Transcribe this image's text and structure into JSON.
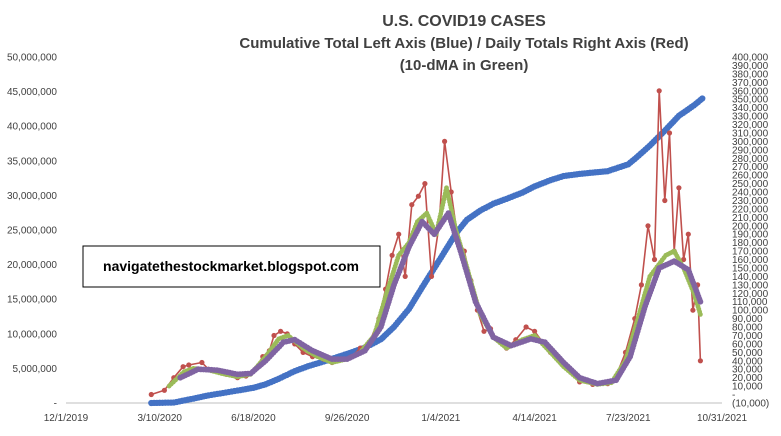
{
  "chart_data": {
    "type": "line",
    "title": "U.S. COVID19 CASES",
    "subtitle_lines": [
      "Cumulative Total Left Axis (Blue) / Daily Totals Right Axis (Red)",
      "(10-dMA in Green)"
    ],
    "annotation": "navigatethestockmarket.blogspot.com",
    "x_axis": {
      "type": "date",
      "range": [
        "2019-12-01",
        "2021-10-31"
      ],
      "tick_labels": [
        "12/1/2019",
        "3/10/2020",
        "6/18/2020",
        "9/26/2020",
        "1/4/2021",
        "4/14/2021",
        "7/23/2021",
        "10/31/2021"
      ]
    },
    "y_left": {
      "range": [
        0,
        50000000
      ],
      "tick_labels": [
        "-",
        "5,000,000",
        "10,000,000",
        "15,000,000",
        "20,000,000",
        "25,000,000",
        "30,000,000",
        "35,000,000",
        "40,000,000",
        "45,000,000",
        "50,000,000"
      ]
    },
    "y_right": {
      "range": [
        -10000,
        400000
      ],
      "tick_labels": [
        "(10,000)",
        "-",
        "10,000",
        "20,000",
        "30,000",
        "40,000",
        "50,000",
        "60,000",
        "70,000",
        "80,000",
        "90,000",
        "100,000",
        "110,000",
        "120,000",
        "130,000",
        "140,000",
        "150,000",
        "160,000",
        "170,000",
        "180,000",
        "190,000",
        "200,000",
        "210,000",
        "220,000",
        "230,000",
        "240,000",
        "250,000",
        "260,000",
        "270,000",
        "280,000",
        "290,000",
        "300,000",
        "310,000",
        "320,000",
        "330,000",
        "340,000",
        "350,000",
        "360,000",
        "370,000",
        "380,000",
        "390,000",
        "400,000"
      ]
    },
    "grid": false,
    "colors": {
      "cumulative": "#4472C4",
      "daily": "#C0504D",
      "ma10": "#9BBB59",
      "ma_smooth": "#8064A2"
    },
    "series": [
      {
        "axis": "left",
        "role": "cumulative",
        "points": [
          [
            "2020-03-01",
            100
          ],
          [
            "2020-03-25",
            70000
          ],
          [
            "2020-04-15",
            640000
          ],
          [
            "2020-05-01",
            1100000
          ],
          [
            "2020-06-01",
            1800000
          ],
          [
            "2020-06-18",
            2200000
          ],
          [
            "2020-07-01",
            2700000
          ],
          [
            "2020-07-15",
            3500000
          ],
          [
            "2020-08-01",
            4600000
          ],
          [
            "2020-08-15",
            5300000
          ],
          [
            "2020-09-01",
            6000000
          ],
          [
            "2020-09-26",
            7100000
          ],
          [
            "2020-10-15",
            8000000
          ],
          [
            "2020-11-01",
            9200000
          ],
          [
            "2020-11-15",
            11000000
          ],
          [
            "2020-12-01",
            13600000
          ],
          [
            "2020-12-15",
            16700000
          ],
          [
            "2021-01-04",
            21000000
          ],
          [
            "2021-01-20",
            24500000
          ],
          [
            "2021-02-01",
            26500000
          ],
          [
            "2021-02-15",
            27800000
          ],
          [
            "2021-03-01",
            28800000
          ],
          [
            "2021-03-15",
            29500000
          ],
          [
            "2021-04-01",
            30400000
          ],
          [
            "2021-04-14",
            31300000
          ],
          [
            "2021-05-01",
            32200000
          ],
          [
            "2021-05-15",
            32800000
          ],
          [
            "2021-06-01",
            33100000
          ],
          [
            "2021-06-15",
            33300000
          ],
          [
            "2021-07-01",
            33500000
          ],
          [
            "2021-07-23",
            34500000
          ],
          [
            "2021-08-01",
            35500000
          ],
          [
            "2021-08-15",
            37200000
          ],
          [
            "2021-09-01",
            39500000
          ],
          [
            "2021-09-15",
            41500000
          ],
          [
            "2021-10-01",
            43000000
          ],
          [
            "2021-10-10",
            44000000
          ]
        ]
      },
      {
        "axis": "right",
        "role": "daily",
        "points": [
          [
            "2020-03-01",
            20
          ],
          [
            "2020-03-15",
            5000
          ],
          [
            "2020-03-25",
            20000
          ],
          [
            "2020-04-04",
            33000
          ],
          [
            "2020-04-10",
            35000
          ],
          [
            "2020-04-24",
            38000
          ],
          [
            "2020-05-01",
            30000
          ],
          [
            "2020-05-10",
            27000
          ],
          [
            "2020-05-20",
            24000
          ],
          [
            "2020-06-01",
            20000
          ],
          [
            "2020-06-10",
            22000
          ],
          [
            "2020-06-20",
            30000
          ],
          [
            "2020-06-28",
            45000
          ],
          [
            "2020-07-05",
            52000
          ],
          [
            "2020-07-10",
            70000
          ],
          [
            "2020-07-17",
            75000
          ],
          [
            "2020-07-24",
            72000
          ],
          [
            "2020-08-01",
            60000
          ],
          [
            "2020-08-10",
            50000
          ],
          [
            "2020-08-20",
            45000
          ],
          [
            "2020-09-01",
            42000
          ],
          [
            "2020-09-10",
            38000
          ],
          [
            "2020-09-20",
            42000
          ],
          [
            "2020-10-01",
            45000
          ],
          [
            "2020-10-10",
            55000
          ],
          [
            "2020-10-20",
            62000
          ],
          [
            "2020-10-30",
            90000
          ],
          [
            "2020-11-06",
            125000
          ],
          [
            "2020-11-13",
            165000
          ],
          [
            "2020-11-20",
            190000
          ],
          [
            "2020-11-27",
            140000
          ],
          [
            "2020-12-04",
            225000
          ],
          [
            "2020-12-11",
            235000
          ],
          [
            "2020-12-18",
            250000
          ],
          [
            "2020-12-25",
            140000
          ],
          [
            "2021-01-02",
            200000
          ],
          [
            "2021-01-08",
            300000
          ],
          [
            "2021-01-15",
            240000
          ],
          [
            "2021-01-22",
            185000
          ],
          [
            "2021-01-29",
            170000
          ],
          [
            "2021-02-05",
            135000
          ],
          [
            "2021-02-12",
            100000
          ],
          [
            "2021-02-19",
            75000
          ],
          [
            "2021-02-26",
            78000
          ],
          [
            "2021-03-05",
            65000
          ],
          [
            "2021-03-15",
            55000
          ],
          [
            "2021-03-25",
            65000
          ],
          [
            "2021-04-05",
            80000
          ],
          [
            "2021-04-14",
            75000
          ],
          [
            "2021-04-24",
            60000
          ],
          [
            "2021-05-01",
            50000
          ],
          [
            "2021-05-15",
            35000
          ],
          [
            "2021-06-01",
            15000
          ],
          [
            "2021-06-15",
            12000
          ],
          [
            "2021-07-01",
            13000
          ],
          [
            "2021-07-10",
            22000
          ],
          [
            "2021-07-20",
            50000
          ],
          [
            "2021-07-30",
            90000
          ],
          [
            "2021-08-06",
            130000
          ],
          [
            "2021-08-13",
            200000
          ],
          [
            "2021-08-20",
            160000
          ],
          [
            "2021-08-25",
            360000
          ],
          [
            "2021-08-31",
            230000
          ],
          [
            "2021-09-05",
            310000
          ],
          [
            "2021-09-10",
            170000
          ],
          [
            "2021-09-15",
            245000
          ],
          [
            "2021-09-20",
            160000
          ],
          [
            "2021-09-25",
            190000
          ],
          [
            "2021-09-30",
            100000
          ],
          [
            "2021-10-05",
            130000
          ],
          [
            "2021-10-08",
            40000
          ]
        ]
      },
      {
        "axis": "right",
        "role": "ma10",
        "points": [
          [
            "2020-03-20",
            10000
          ],
          [
            "2020-04-05",
            27000
          ],
          [
            "2020-04-15",
            31000
          ],
          [
            "2020-05-01",
            29000
          ],
          [
            "2020-05-15",
            25000
          ],
          [
            "2020-06-01",
            21000
          ],
          [
            "2020-06-15",
            24000
          ],
          [
            "2020-07-01",
            45000
          ],
          [
            "2020-07-15",
            66000
          ],
          [
            "2020-07-25",
            70000
          ],
          [
            "2020-08-10",
            55000
          ],
          [
            "2020-08-25",
            45000
          ],
          [
            "2020-09-10",
            38000
          ],
          [
            "2020-09-26",
            42000
          ],
          [
            "2020-10-10",
            50000
          ],
          [
            "2020-10-25",
            70000
          ],
          [
            "2020-11-07",
            120000
          ],
          [
            "2020-11-20",
            165000
          ],
          [
            "2020-12-01",
            180000
          ],
          [
            "2020-12-10",
            205000
          ],
          [
            "2020-12-20",
            215000
          ],
          [
            "2020-12-30",
            190000
          ],
          [
            "2021-01-10",
            245000
          ],
          [
            "2021-01-20",
            195000
          ],
          [
            "2021-02-01",
            150000
          ],
          [
            "2021-02-15",
            95000
          ],
          [
            "2021-03-01",
            68000
          ],
          [
            "2021-03-15",
            55000
          ],
          [
            "2021-04-01",
            65000
          ],
          [
            "2021-04-14",
            70000
          ],
          [
            "2021-05-01",
            50000
          ],
          [
            "2021-05-15",
            33000
          ],
          [
            "2021-06-01",
            17000
          ],
          [
            "2021-06-20",
            12000
          ],
          [
            "2021-07-05",
            14000
          ],
          [
            "2021-07-20",
            40000
          ],
          [
            "2021-08-01",
            85000
          ],
          [
            "2021-08-15",
            140000
          ],
          [
            "2021-09-01",
            165000
          ],
          [
            "2021-09-10",
            170000
          ],
          [
            "2021-09-20",
            150000
          ],
          [
            "2021-10-01",
            120000
          ],
          [
            "2021-10-08",
            95000
          ]
        ]
      },
      {
        "axis": "right",
        "role": "ma_smooth",
        "points": [
          [
            "2020-04-01",
            20000
          ],
          [
            "2020-04-20",
            30000
          ],
          [
            "2020-05-10",
            29000
          ],
          [
            "2020-06-01",
            24000
          ],
          [
            "2020-06-15",
            25000
          ],
          [
            "2020-07-01",
            40000
          ],
          [
            "2020-07-20",
            62000
          ],
          [
            "2020-08-01",
            65000
          ],
          [
            "2020-08-20",
            52000
          ],
          [
            "2020-09-10",
            42000
          ],
          [
            "2020-09-26",
            42000
          ],
          [
            "2020-10-15",
            52000
          ],
          [
            "2020-11-01",
            80000
          ],
          [
            "2020-11-15",
            130000
          ],
          [
            "2020-12-01",
            175000
          ],
          [
            "2020-12-15",
            205000
          ],
          [
            "2020-12-28",
            190000
          ],
          [
            "2021-01-12",
            215000
          ],
          [
            "2021-01-25",
            170000
          ],
          [
            "2021-02-10",
            110000
          ],
          [
            "2021-03-01",
            68000
          ],
          [
            "2021-03-20",
            58000
          ],
          [
            "2021-04-10",
            66000
          ],
          [
            "2021-04-25",
            62000
          ],
          [
            "2021-05-15",
            38000
          ],
          [
            "2021-06-01",
            20000
          ],
          [
            "2021-06-20",
            13000
          ],
          [
            "2021-07-10",
            17000
          ],
          [
            "2021-07-25",
            45000
          ],
          [
            "2021-08-10",
            105000
          ],
          [
            "2021-08-25",
            150000
          ],
          [
            "2021-09-10",
            158000
          ],
          [
            "2021-09-25",
            148000
          ],
          [
            "2021-10-08",
            110000
          ]
        ]
      }
    ]
  }
}
